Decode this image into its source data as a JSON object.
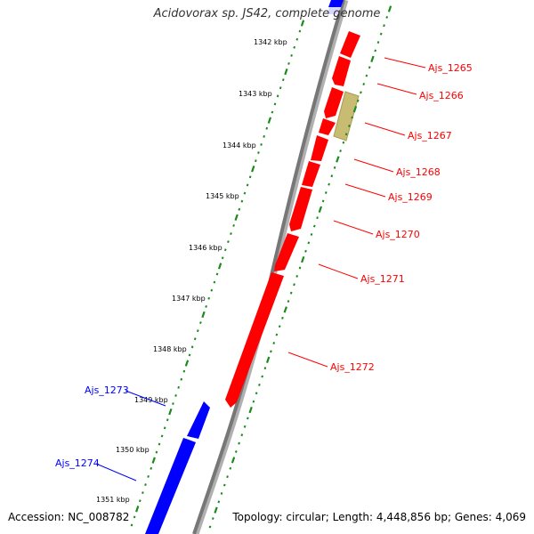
{
  "title": "Acidovorax sp. JS42, complete genome",
  "accession_text": "Accession: NC_008782",
  "summary_text": "Topology: circular; Length: 4,448,856 bp; Genes: 4,069",
  "colors": {
    "forward_gene": "#ff0000",
    "reverse_gene": "#0000ff",
    "other_feature": "#c0b870",
    "backbone": "#808080",
    "tick": "#1a8a1a"
  },
  "ruler_labels": [
    "1342 kbp",
    "1343 kbp",
    "1344 kbp",
    "1345 kbp",
    "1346 kbp",
    "1347 kbp",
    "1348 kbp",
    "1349 kbp",
    "1350 kbp",
    "1351 kbp"
  ],
  "gene_labels": [
    {
      "name": "Ajs_1265",
      "strand": "forward"
    },
    {
      "name": "Ajs_1266",
      "strand": "forward"
    },
    {
      "name": "Ajs_1267",
      "strand": "forward"
    },
    {
      "name": "Ajs_1268",
      "strand": "forward"
    },
    {
      "name": "Ajs_1269",
      "strand": "forward"
    },
    {
      "name": "Ajs_1270",
      "strand": "forward"
    },
    {
      "name": "Ajs_1271",
      "strand": "forward"
    },
    {
      "name": "Ajs_1272",
      "strand": "forward"
    },
    {
      "name": "Ajs_1273",
      "strand": "reverse"
    },
    {
      "name": "Ajs_1274",
      "strand": "reverse"
    }
  ]
}
